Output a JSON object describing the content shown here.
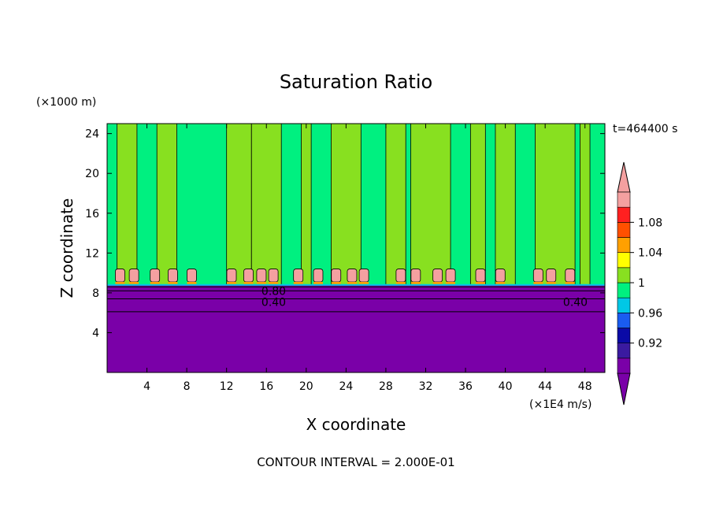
{
  "chart_data": {
    "type": "heatmap",
    "title": "Saturation Ratio",
    "xlabel": "X coordinate",
    "ylabel": "Z coordinate",
    "x_unit": "(×1E4 m/s)",
    "y_unit": "(×1000 m)",
    "time_label": "t=464400 s",
    "footer": "CONTOUR INTERVAL = 2.000E-01",
    "xlim": [
      0,
      50
    ],
    "ylim": [
      0,
      25
    ],
    "x_ticks": [
      "4",
      "8",
      "12",
      "16",
      "20",
      "24",
      "28",
      "32",
      "36",
      "40",
      "44",
      "48"
    ],
    "y_ticks": [
      "4",
      "8",
      "12",
      "16",
      "20",
      "24"
    ],
    "contour_labels": [
      "0.80",
      "0.40",
      "0.40"
    ],
    "colorbar": {
      "labels": [
        "1.08",
        "1.04",
        "1",
        "0.96",
        "0.92"
      ],
      "levels": [
        {
          "color": "#7a00a8"
        },
        {
          "color": "#3a1aa0"
        },
        {
          "color": "#0a0aa6"
        },
        {
          "color": "#1a5cf0"
        },
        {
          "color": "#00c8e6"
        },
        {
          "color": "#00f080"
        },
        {
          "color": "#88e020"
        },
        {
          "color": "#ffff00"
        },
        {
          "color": "#ffa000"
        },
        {
          "color": "#ff5000"
        },
        {
          "color": "#ff2020"
        },
        {
          "color": "#f4a0a0"
        }
      ]
    },
    "layers": [
      {
        "z_from": 0,
        "z_to": 8.8,
        "value": "< 0.92"
      },
      {
        "z_from": 8.8,
        "z_to": 25,
        "value": "0.98–1.02"
      }
    ],
    "upper_plumes_x": [
      [
        1,
        3
      ],
      [
        5,
        7
      ],
      [
        12,
        14.5
      ],
      [
        14.5,
        17.5
      ],
      [
        19.5,
        20.5
      ],
      [
        22.5,
        25.5
      ],
      [
        28,
        30
      ],
      [
        30.5,
        34.5
      ],
      [
        36.5,
        38
      ],
      [
        39,
        41
      ],
      [
        43,
        47
      ],
      [
        47.5,
        48.5
      ]
    ]
  }
}
